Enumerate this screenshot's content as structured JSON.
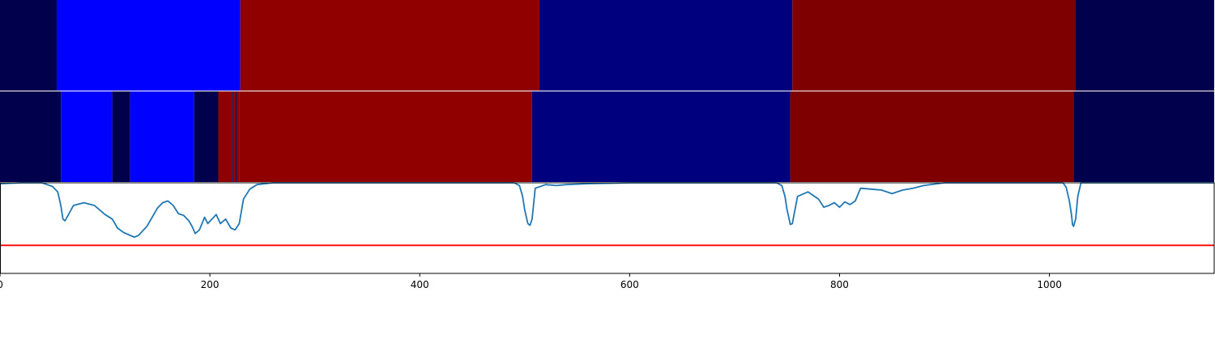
{
  "chart_data": [
    {
      "type": "heatmap",
      "panel": "top",
      "x_range": [
        0,
        1157
      ],
      "segments": [
        {
          "start": 0,
          "end": 54,
          "color": "#00004c"
        },
        {
          "start": 54,
          "end": 229,
          "color": "#0000fe"
        },
        {
          "start": 229,
          "end": 514,
          "color": "#900000"
        },
        {
          "start": 514,
          "end": 755,
          "color": "#00007f"
        },
        {
          "start": 755,
          "end": 1025,
          "color": "#7f0000"
        },
        {
          "start": 1025,
          "end": 1157,
          "color": "#00004c"
        }
      ]
    },
    {
      "type": "heatmap",
      "panel": "middle",
      "x_range": [
        0,
        1157
      ],
      "segments": [
        {
          "start": 0,
          "end": 58,
          "color": "#00004c"
        },
        {
          "start": 58,
          "end": 107,
          "color": "#0000fe"
        },
        {
          "start": 107,
          "end": 124,
          "color": "#00004c"
        },
        {
          "start": 124,
          "end": 185,
          "color": "#0000fe"
        },
        {
          "start": 185,
          "end": 208,
          "color": "#00004c"
        },
        {
          "start": 208,
          "end": 221,
          "color": "#900000"
        },
        {
          "start": 221,
          "end": 222,
          "color": "#00004c"
        },
        {
          "start": 222,
          "end": 225,
          "color": "#900000"
        },
        {
          "start": 225,
          "end": 226,
          "color": "#00004c"
        },
        {
          "start": 226,
          "end": 228,
          "color": "#900000"
        },
        {
          "start": 228,
          "end": 507,
          "color": "#900000"
        },
        {
          "start": 507,
          "end": 753,
          "color": "#00007f"
        },
        {
          "start": 753,
          "end": 1023,
          "color": "#7f0000"
        },
        {
          "start": 1023,
          "end": 1157,
          "color": "#00004c"
        }
      ]
    },
    {
      "type": "line",
      "panel": "bottom",
      "xlim": [
        0,
        1157
      ],
      "ylim": [
        0,
        1
      ],
      "series": [
        {
          "color": "#1f77b4",
          "x": [
            0,
            20,
            40,
            50,
            55,
            58,
            60,
            62,
            70,
            80,
            90,
            100,
            107,
            112,
            118,
            124,
            128,
            132,
            140,
            150,
            155,
            160,
            165,
            170,
            175,
            180,
            183,
            186,
            190,
            195,
            198,
            202,
            206,
            210,
            215,
            220,
            224,
            228,
            232,
            238,
            245,
            260,
            300,
            400,
            490,
            495,
            498,
            500,
            503,
            505,
            507,
            510,
            520,
            530,
            540,
            560,
            600,
            700,
            740,
            745,
            748,
            750,
            752,
            753,
            755,
            760,
            770,
            780,
            785,
            790,
            795,
            800,
            805,
            810,
            815,
            820,
            830,
            840,
            850,
            860,
            870,
            880,
            900,
            1000,
            1013,
            1016,
            1019,
            1021,
            1022,
            1023,
            1025,
            1027,
            1030,
            1040,
            1157
          ],
          "y": [
            0.99,
            1.0,
            1.0,
            0.96,
            0.9,
            0.75,
            0.6,
            0.58,
            0.75,
            0.78,
            0.75,
            0.65,
            0.6,
            0.5,
            0.45,
            0.42,
            0.4,
            0.42,
            0.52,
            0.72,
            0.78,
            0.8,
            0.75,
            0.66,
            0.64,
            0.58,
            0.52,
            0.44,
            0.48,
            0.62,
            0.55,
            0.6,
            0.65,
            0.55,
            0.6,
            0.5,
            0.48,
            0.55,
            0.82,
            0.93,
            0.98,
            1.0,
            1.0,
            1.0,
            1.0,
            0.97,
            0.85,
            0.7,
            0.55,
            0.53,
            0.6,
            0.94,
            0.98,
            0.97,
            0.98,
            0.99,
            1.0,
            1.0,
            1.0,
            0.97,
            0.85,
            0.7,
            0.6,
            0.54,
            0.55,
            0.85,
            0.9,
            0.82,
            0.73,
            0.75,
            0.78,
            0.73,
            0.79,
            0.76,
            0.8,
            0.94,
            0.93,
            0.92,
            0.88,
            0.92,
            0.94,
            0.97,
            1.0,
            1.0,
            1.0,
            0.95,
            0.8,
            0.65,
            0.54,
            0.52,
            0.6,
            0.85,
            1.0,
            1.0,
            1.0
          ]
        },
        {
          "color": "#ff0000",
          "x": [
            0,
            1157
          ],
          "y": [
            0.31,
            0.31
          ]
        }
      ],
      "xticks": [
        0,
        200,
        400,
        600,
        800,
        1000
      ],
      "xtick_labels": [
        "0",
        "200",
        "400",
        "600",
        "800",
        "1000"
      ]
    }
  ]
}
